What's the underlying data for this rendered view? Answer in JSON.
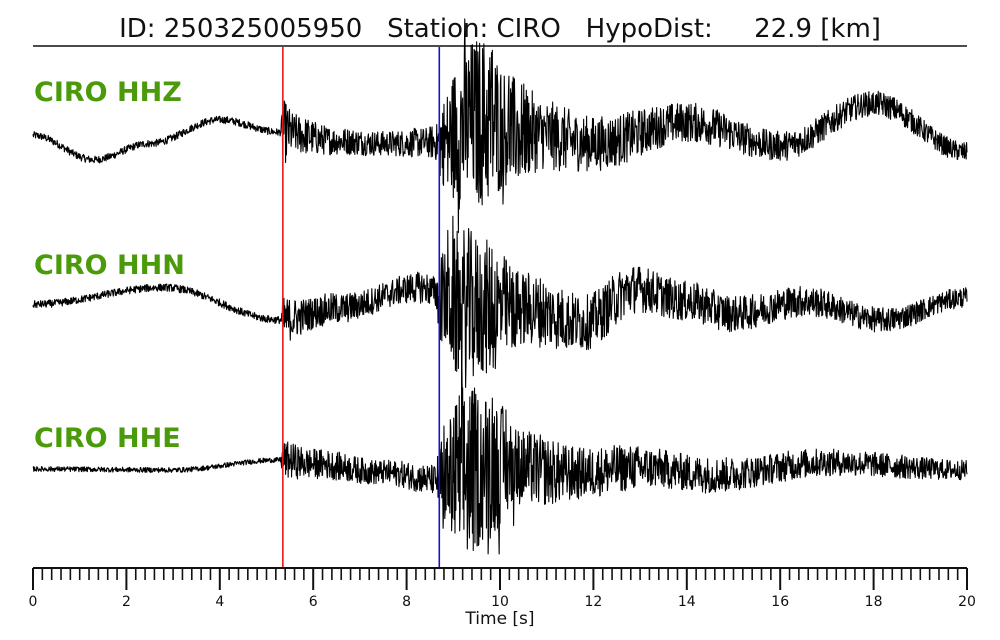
{
  "chart_data": {
    "type": "line",
    "title": "ID: 250325005950   Station: CIRO   HypoDist:     22.9 [km]",
    "xlabel": "Time [s]",
    "ylabel": "",
    "xlim": [
      0,
      20
    ],
    "x_ticks": [
      0,
      2,
      4,
      6,
      8,
      10,
      12,
      14,
      16,
      18,
      20
    ],
    "x_minor_step": 0.2,
    "grid": false,
    "legend": "none",
    "label_color": "#4a9a0a",
    "trace_color": "#000000",
    "picks": [
      {
        "time": 5.35,
        "color": "#e8191d"
      },
      {
        "time": 8.7,
        "color": "#1515c8"
      }
    ],
    "series": [
      {
        "name": "CIRO HHZ",
        "envelope": [
          [
            0,
            0.3
          ],
          [
            5.3,
            0.3
          ],
          [
            5.35,
            2.6
          ],
          [
            5.6,
            1.6
          ],
          [
            6.5,
            1.1
          ],
          [
            7.5,
            1.0
          ],
          [
            8.4,
            1.2
          ],
          [
            8.65,
            1.5
          ],
          [
            8.75,
            3.5
          ],
          [
            9.2,
            6.5
          ],
          [
            9.7,
            7.0
          ],
          [
            10.2,
            4.5
          ],
          [
            11,
            2.8
          ],
          [
            12,
            2.2
          ],
          [
            14,
            1.6
          ],
          [
            16,
            1.2
          ],
          [
            18,
            1.0
          ],
          [
            20,
            0.8
          ]
        ],
        "background": [
          [
            0,
            0.05
          ],
          [
            1.3,
            -1.9
          ],
          [
            2.5,
            -0.6
          ],
          [
            4,
            1.3
          ],
          [
            5.3,
            0.3
          ],
          [
            6.5,
            -0.4
          ],
          [
            7.5,
            -0.6
          ],
          [
            8.7,
            -0.5
          ],
          [
            9.5,
            1.2
          ],
          [
            10.5,
            0.3
          ],
          [
            12,
            -0.6
          ],
          [
            14,
            1.1
          ],
          [
            16,
            -0.8
          ],
          [
            18,
            2.6
          ],
          [
            20,
            -1.3
          ]
        ]
      },
      {
        "name": "CIRO HHN",
        "envelope": [
          [
            0,
            0.3
          ],
          [
            5.3,
            0.3
          ],
          [
            5.35,
            1.8
          ],
          [
            6,
            1.3
          ],
          [
            7.5,
            1.1
          ],
          [
            8.6,
            1.3
          ],
          [
            8.75,
            3.8
          ],
          [
            9.2,
            6.5
          ],
          [
            9.7,
            5.5
          ],
          [
            10.5,
            3.0
          ],
          [
            12,
            2.2
          ],
          [
            14,
            1.6
          ],
          [
            16,
            1.3
          ],
          [
            18,
            1.0
          ],
          [
            20,
            0.8
          ]
        ],
        "background": [
          [
            0,
            0.05
          ],
          [
            2.8,
            1.4
          ],
          [
            5.3,
            -1.2
          ],
          [
            6.5,
            -0.3
          ],
          [
            8.3,
            1.4
          ],
          [
            9.2,
            -0.2
          ],
          [
            10.5,
            -0.3
          ],
          [
            11.8,
            -1.4
          ],
          [
            12.9,
            1.3
          ],
          [
            14,
            0.3
          ],
          [
            15,
            -0.7
          ],
          [
            16.5,
            0.3
          ],
          [
            18.2,
            -1.2
          ],
          [
            20,
            0.6
          ]
        ]
      },
      {
        "name": "CIRO HHE",
        "envelope": [
          [
            0,
            0.2
          ],
          [
            5.3,
            0.2
          ],
          [
            5.35,
            1.5
          ],
          [
            6,
            1.2
          ],
          [
            7.5,
            1.0
          ],
          [
            8.6,
            1.2
          ],
          [
            8.75,
            3.5
          ],
          [
            9.2,
            7.5
          ],
          [
            9.7,
            6.0
          ],
          [
            10.5,
            3.0
          ],
          [
            12,
            2.0
          ],
          [
            14,
            1.5
          ],
          [
            16,
            1.2
          ],
          [
            18,
            1.0
          ],
          [
            20,
            0.8
          ]
        ],
        "background": [
          [
            0,
            0.08
          ],
          [
            3,
            0.0
          ],
          [
            5.3,
            0.8
          ],
          [
            6,
            0.5
          ],
          [
            7.5,
            -0.2
          ],
          [
            8.7,
            -0.8
          ],
          [
            10,
            0.4
          ],
          [
            11.5,
            -0.3
          ],
          [
            13,
            0.2
          ],
          [
            14.6,
            -0.4
          ],
          [
            17,
            0.6
          ],
          [
            20,
            0.0
          ]
        ]
      }
    ]
  }
}
